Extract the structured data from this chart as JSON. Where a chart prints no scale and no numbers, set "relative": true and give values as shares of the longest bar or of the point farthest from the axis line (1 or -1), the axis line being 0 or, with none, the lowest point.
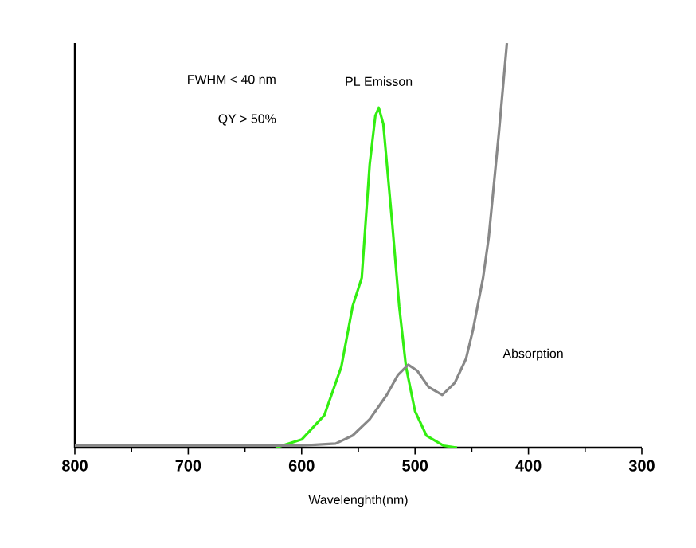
{
  "chart_data": {
    "type": "line",
    "relative": true,
    "xlabel": "Wavelenghth(nm)",
    "xlim": [
      800,
      300
    ],
    "xticks": [
      800,
      700,
      600,
      500,
      400,
      300
    ],
    "annotations": [
      "FWHM < 40 nm",
      "QY > 50%"
    ],
    "series": [
      {
        "name": "PL Emisson",
        "color": "#33ee11",
        "x": [
          623,
          600,
          580,
          565,
          555,
          547,
          540,
          535,
          532,
          528,
          520,
          514,
          508,
          500,
          490,
          475,
          463
        ],
        "values": [
          0,
          0.02,
          0.08,
          0.2,
          0.35,
          0.42,
          0.7,
          0.82,
          0.84,
          0.8,
          0.55,
          0.35,
          0.2,
          0.09,
          0.03,
          0.005,
          0
        ]
      },
      {
        "name": "Absorption",
        "color": "#888888",
        "x": [
          800,
          600,
          570,
          555,
          540,
          525,
          515,
          506,
          498,
          488,
          476,
          465,
          455,
          449,
          440,
          435,
          426,
          419
        ],
        "values": [
          0.005,
          0.005,
          0.01,
          0.03,
          0.07,
          0.13,
          0.18,
          0.205,
          0.19,
          0.15,
          0.13,
          0.16,
          0.22,
          0.29,
          0.42,
          0.52,
          0.78,
          1
        ]
      }
    ]
  }
}
